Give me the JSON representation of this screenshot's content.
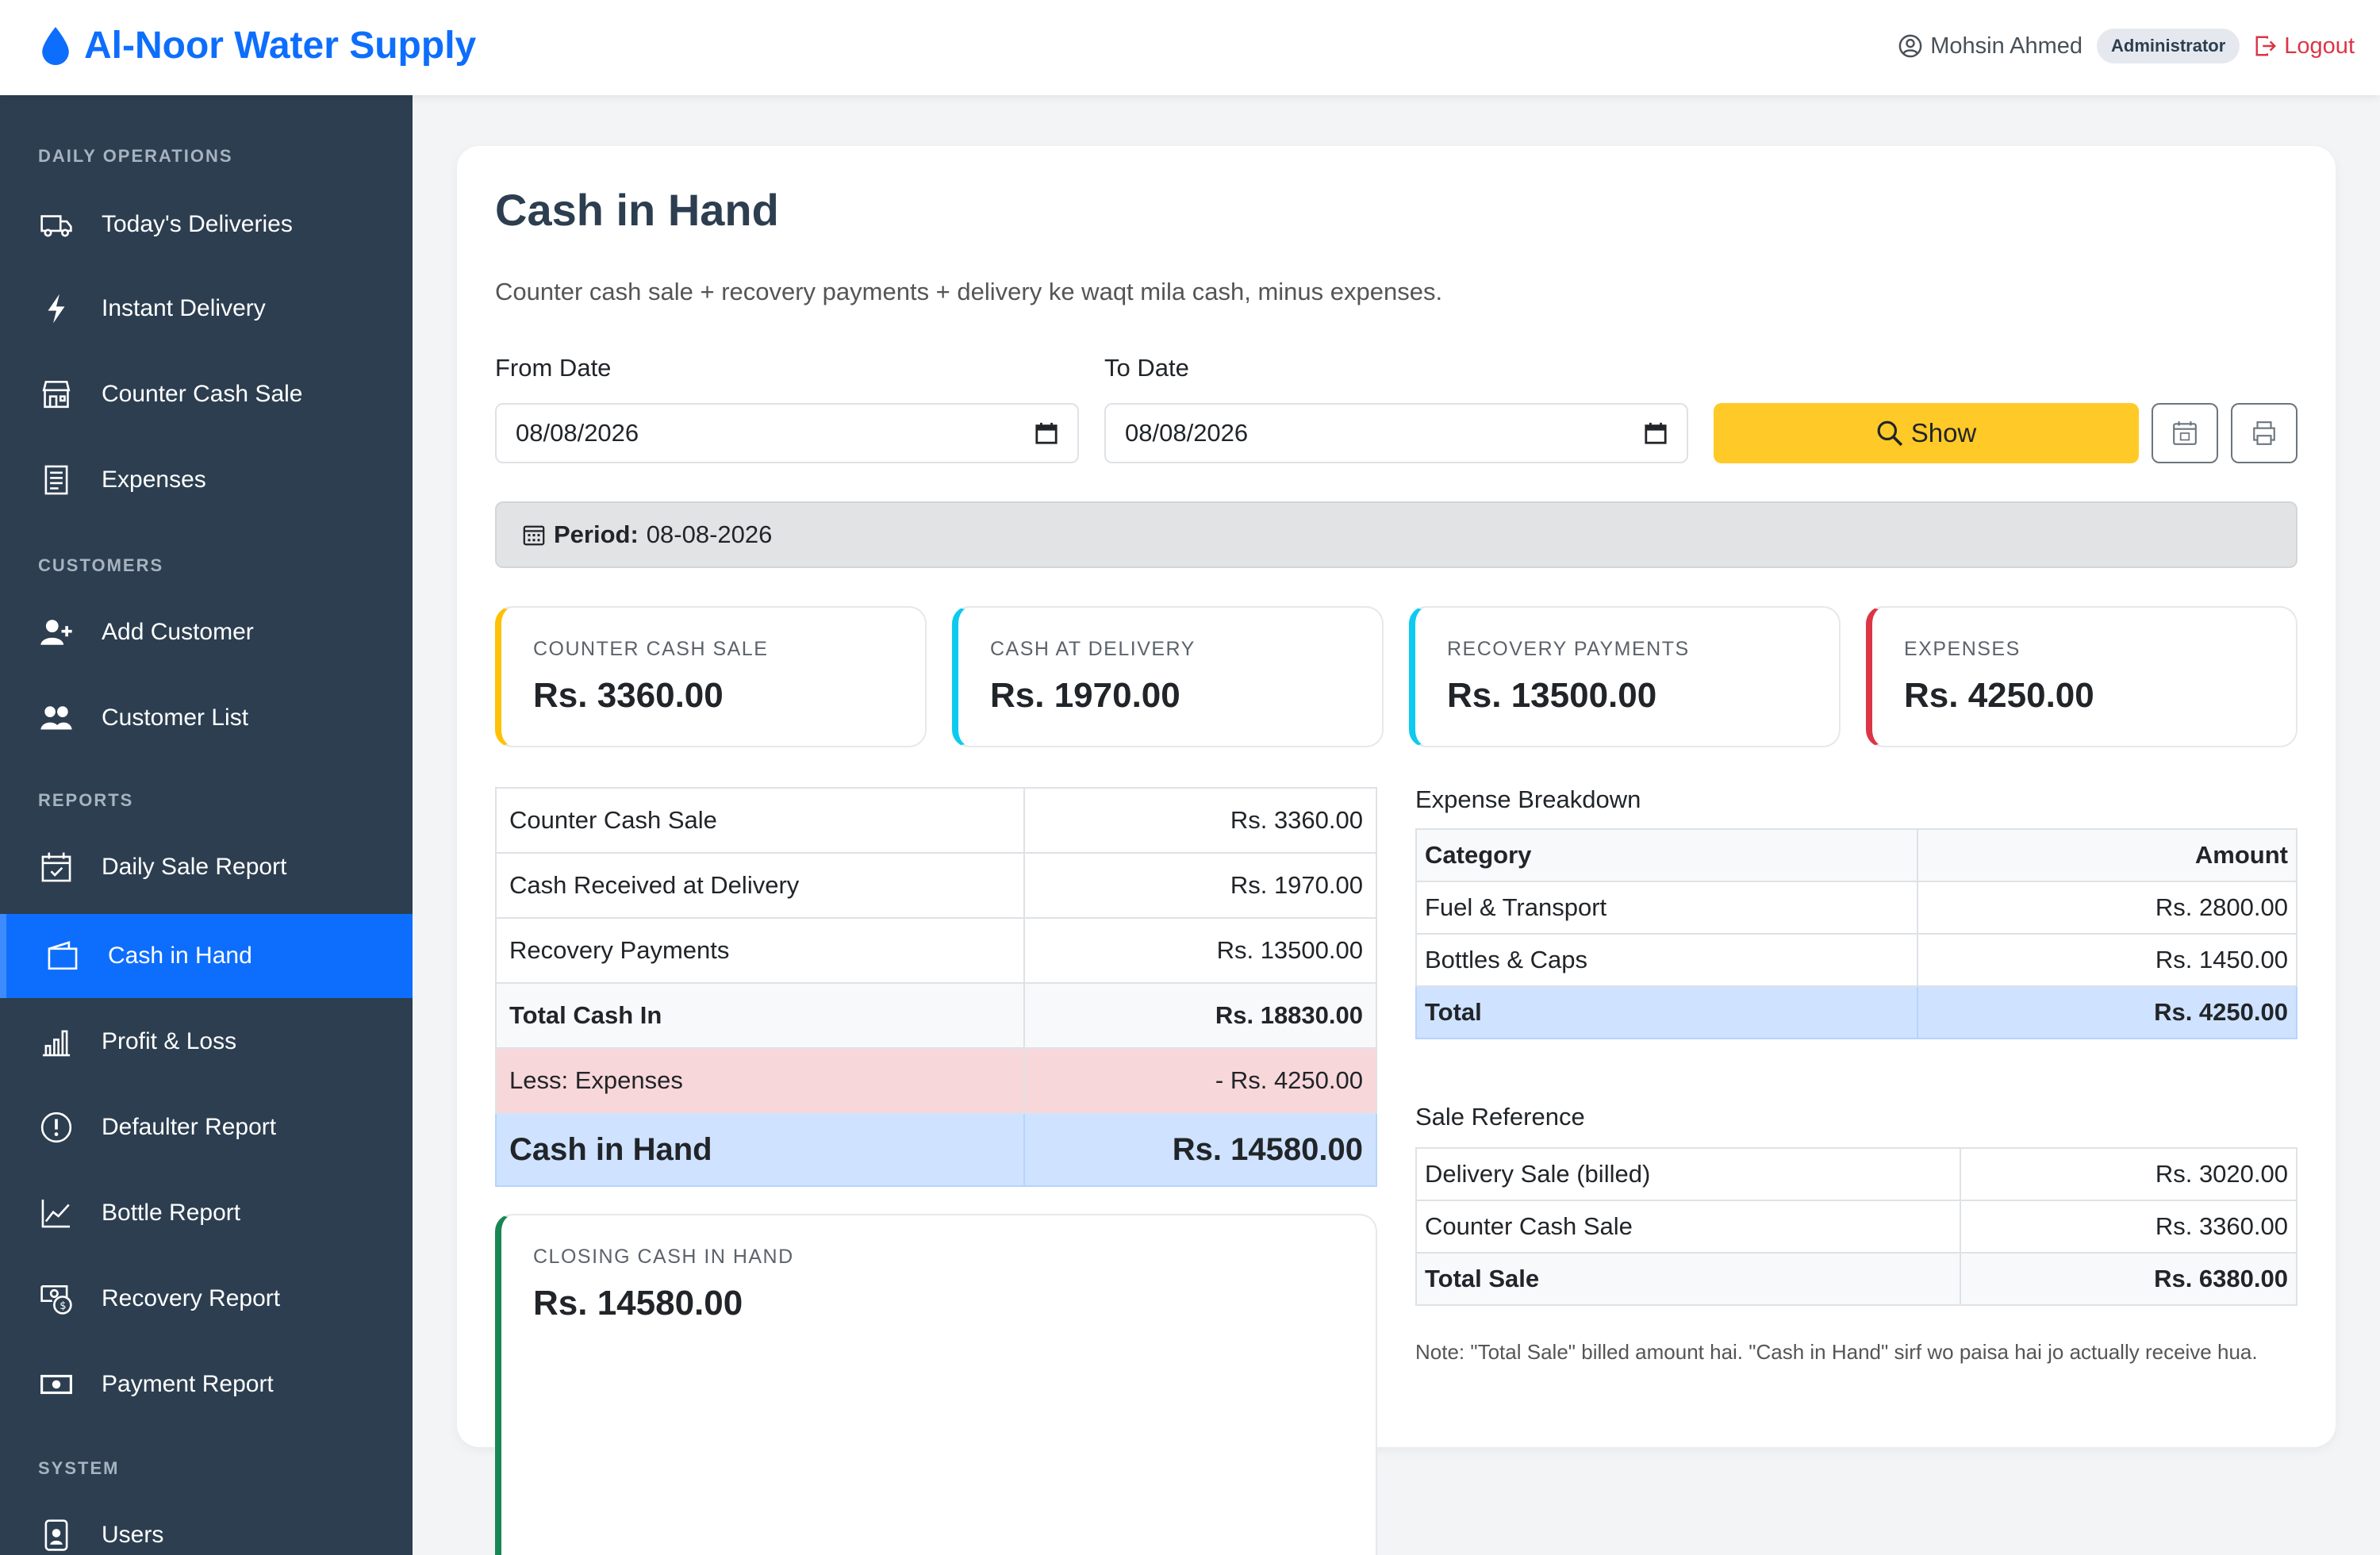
{
  "brand": {
    "name": "Al-Noor Water Supply"
  },
  "user": {
    "name": "Mohsin Ahmed",
    "role": "Administrator",
    "logout": "Logout"
  },
  "sidebar": {
    "sections": [
      "DAILY OPERATIONS",
      "CUSTOMERS",
      "REPORTS",
      "SYSTEM"
    ],
    "items": [
      {
        "label": "Today's Deliveries",
        "icon": "truck-icon"
      },
      {
        "label": "Instant Delivery",
        "icon": "lightning-icon"
      },
      {
        "label": "Counter Cash Sale",
        "icon": "shop-icon"
      },
      {
        "label": "Expenses",
        "icon": "receipt-icon"
      },
      {
        "label": "Add Customer",
        "icon": "person-add-icon"
      },
      {
        "label": "Customer List",
        "icon": "people-icon"
      },
      {
        "label": "Daily Sale Report",
        "icon": "calendar-check-icon"
      },
      {
        "label": "Cash in Hand",
        "icon": "wallet-icon",
        "active": true
      },
      {
        "label": "Profit & Loss",
        "icon": "bar-chart-icon"
      },
      {
        "label": "Defaulter Report",
        "icon": "exclamation-circle-icon"
      },
      {
        "label": "Bottle Report",
        "icon": "graph-up-icon"
      },
      {
        "label": "Recovery Report",
        "icon": "cash-coin-icon"
      },
      {
        "label": "Payment Report",
        "icon": "cash-icon"
      },
      {
        "label": "Users",
        "icon": "person-badge-icon"
      }
    ]
  },
  "page": {
    "title": "Cash in Hand",
    "subtitle": "Counter cash sale + recovery payments + delivery ke waqt mila cash, minus expenses."
  },
  "filters": {
    "from_label": "From Date",
    "from_value": "08/08/2026",
    "to_label": "To Date",
    "to_value": "08/08/2026",
    "show_label": "Show"
  },
  "period": {
    "label": "Period:",
    "value": "08-08-2026"
  },
  "stats": [
    {
      "label": "COUNTER CASH SALE",
      "value": "Rs. 3360.00",
      "color": "#ffc107"
    },
    {
      "label": "CASH AT DELIVERY",
      "value": "Rs. 1970.00",
      "color": "#0dcaf0"
    },
    {
      "label": "RECOVERY PAYMENTS",
      "value": "Rs. 13500.00",
      "color": "#0dcaf0"
    },
    {
      "label": "EXPENSES",
      "value": "Rs. 4250.00",
      "color": "#dc3545"
    }
  ],
  "summary": {
    "rows": [
      {
        "label": "Counter Cash Sale",
        "value": "Rs. 3360.00"
      },
      {
        "label": "Cash Received at Delivery",
        "value": "Rs. 1970.00"
      },
      {
        "label": "Recovery Payments",
        "value": "Rs. 13500.00"
      },
      {
        "label": "Total Cash In",
        "value": "Rs. 18830.00"
      },
      {
        "label": "Less: Expenses",
        "value": "- Rs. 4250.00"
      },
      {
        "label": "Cash in Hand",
        "value": "Rs. 14580.00"
      }
    ]
  },
  "closing": {
    "label": "CLOSING CASH IN HAND",
    "value": "Rs. 14580.00"
  },
  "expense_breakdown": {
    "title": "Expense Breakdown",
    "headers": [
      "Category",
      "Amount"
    ],
    "rows": [
      {
        "category": "Fuel & Transport",
        "amount": "Rs. 2800.00"
      },
      {
        "category": "Bottles & Caps",
        "amount": "Rs. 1450.00"
      }
    ],
    "total_label": "Total",
    "total_value": "Rs. 4250.00"
  },
  "sale_reference": {
    "title": "Sale Reference",
    "rows": [
      {
        "label": "Delivery Sale (billed)",
        "value": "Rs. 3020.00"
      },
      {
        "label": "Counter Cash Sale",
        "value": "Rs. 3360.00"
      }
    ],
    "total_label": "Total Sale",
    "total_value": "Rs. 6380.00"
  },
  "note": "Note: \"Total Sale\" billed amount hai. \"Cash in Hand\" sirf wo paisa hai jo actually receive hua."
}
